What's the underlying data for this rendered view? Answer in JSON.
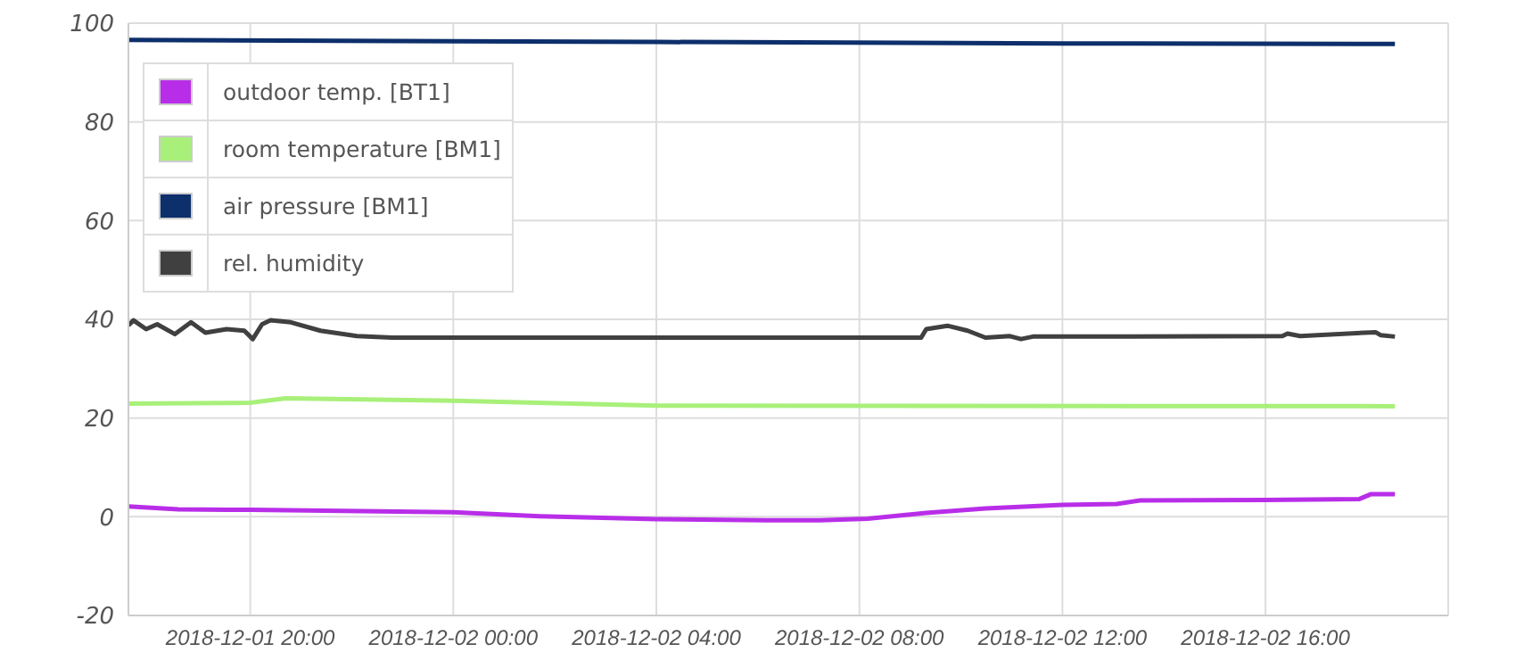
{
  "chart_data": {
    "type": "line",
    "xlim": [
      "2018-12-01T17:36",
      "2018-12-02T19:36"
    ],
    "xticks": [
      {
        "value": "2018-12-01T20:00",
        "label": "2018-12-01 20:00"
      },
      {
        "value": "2018-12-02T00:00",
        "label": "2018-12-02 00:00"
      },
      {
        "value": "2018-12-02T04:00",
        "label": "2018-12-02 04:00"
      },
      {
        "value": "2018-12-02T08:00",
        "label": "2018-12-02 08:00"
      },
      {
        "value": "2018-12-02T12:00",
        "label": "2018-12-02 12:00"
      },
      {
        "value": "2018-12-02T16:00",
        "label": "2018-12-02 16:00"
      }
    ],
    "ylim": [
      -20,
      100
    ],
    "yticks": [
      -20,
      0,
      20,
      40,
      60,
      80,
      100
    ],
    "grid": true,
    "legend": "top left",
    "marker": "none",
    "line_style": "solid",
    "series": [
      {
        "name": "outdoor temp. [BT1]",
        "color": "#b82ee8",
        "x": [
          "2018-12-01T17:36",
          "2018-12-01T18:35",
          "2018-12-01T20:00",
          "2018-12-02T00:00",
          "2018-12-02T01:42",
          "2018-12-02T04:00",
          "2018-12-02T06:10",
          "2018-12-02T07:13",
          "2018-12-02T08:10",
          "2018-12-02T09:19",
          "2018-12-02T10:29",
          "2018-12-02T12:00",
          "2018-12-02T13:04",
          "2018-12-02T13:32",
          "2018-12-02T16:00",
          "2018-12-02T17:51",
          "2018-12-02T18:05",
          "2018-12-02T18:33"
        ],
        "values": [
          2.1,
          1.5,
          1.4,
          0.9,
          0.1,
          -0.5,
          -0.7,
          -0.7,
          -0.4,
          0.8,
          1.7,
          2.4,
          2.6,
          3.3,
          3.4,
          3.6,
          4.6,
          4.6
        ]
      },
      {
        "name": "room temperature [BM1]",
        "color": "#a8f07a",
        "x": [
          "2018-12-01T17:36",
          "2018-12-01T20:00",
          "2018-12-01T20:42",
          "2018-12-02T00:00",
          "2018-12-02T04:00",
          "2018-12-02T18:33"
        ],
        "values": [
          22.9,
          23.1,
          24,
          23.5,
          22.5,
          22.4
        ]
      },
      {
        "name": "air pressure [BM1]",
        "color": "#0d2f6b",
        "x": [
          "2018-12-01T17:36",
          "2018-12-02T04:00",
          "2018-12-02T12:00",
          "2018-12-02T18:33"
        ],
        "values": [
          96.6,
          96.2,
          95.9,
          95.8
        ]
      },
      {
        "name": "rel. humidity",
        "color": "#404040",
        "x": [
          "2018-12-01T17:36",
          "2018-12-01T17:42",
          "2018-12-01T17:57",
          "2018-12-01T18:10",
          "2018-12-01T18:31",
          "2018-12-01T18:50",
          "2018-12-01T19:07",
          "2018-12-01T19:32",
          "2018-12-01T19:53",
          "2018-12-01T20:03",
          "2018-12-01T20:14",
          "2018-12-01T20:24",
          "2018-12-01T20:48",
          "2018-12-01T21:23",
          "2018-12-01T22:06",
          "2018-12-01T22:48",
          "2018-12-02T09:13",
          "2018-12-02T09:19",
          "2018-12-02T09:44",
          "2018-12-02T10:08",
          "2018-12-02T10:29",
          "2018-12-02T10:58",
          "2018-12-02T11:11",
          "2018-12-02T11:25",
          "2018-12-02T16:20",
          "2018-12-02T16:26",
          "2018-12-02T16:41",
          "2018-12-02T18:10",
          "2018-12-02T18:16",
          "2018-12-02T18:33"
        ],
        "values": [
          38.8,
          39.8,
          38,
          39,
          37,
          39.4,
          37.3,
          38,
          37.7,
          36,
          39,
          39.8,
          39.4,
          37.7,
          36.6,
          36.3,
          36.3,
          38,
          38.7,
          37.7,
          36.3,
          36.6,
          36,
          36.5,
          36.6,
          37.1,
          36.6,
          37.4,
          36.8,
          36.5
        ]
      }
    ]
  }
}
